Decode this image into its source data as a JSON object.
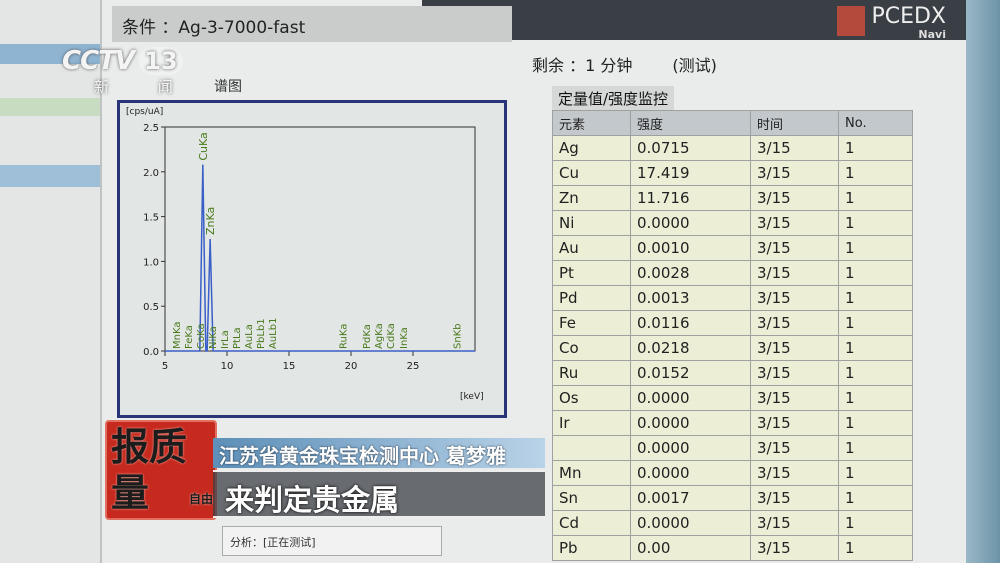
{
  "broadcast": {
    "channel_logo": "CCTV",
    "channel_number": "13",
    "channel_name": "新 闻",
    "program_seal": "报质量",
    "seal_small": "自由",
    "caption_speaker": "江苏省黄金珠宝检测中心 葛梦雅",
    "caption_subtitle": "来判定贵金属"
  },
  "app": {
    "brand": "PCEDX",
    "brand_sub": "Navi",
    "condition": "条件 ：Ag-3-7000-fast",
    "remaining": "剩余 ：1 分钟",
    "mode": "(测试)",
    "chart_label": "谱图",
    "accent": "#2a3578"
  },
  "spectrum": {
    "ylabel": "[cps/uA]",
    "xlabel": "[keV]",
    "xlim": [
      5,
      30
    ],
    "ylim": [
      0,
      2.5
    ],
    "xticks": [
      "5",
      "10",
      "15",
      "20",
      "25"
    ],
    "yticks": [
      "0.0",
      "0.5",
      "1.0",
      "1.5",
      "2.0",
      "2.5"
    ],
    "peaks": [
      {
        "label": "CuKa",
        "x": 8.05,
        "y": 2.08
      },
      {
        "label": "ZnKa",
        "x": 8.64,
        "y": 1.25
      }
    ],
    "line_labels": [
      {
        "label": "MnKa",
        "x": 5.9
      },
      {
        "label": "FeKa",
        "x": 6.4
      },
      {
        "label": "CoKa",
        "x": 6.9
      },
      {
        "label": "NiKa",
        "x": 7.5
      },
      {
        "label": "IrLa",
        "x": 9.2
      },
      {
        "label": "PtLa",
        "x": 9.4
      },
      {
        "label": "AuLa",
        "x": 9.7
      },
      {
        "label": "PbLb1",
        "x": 10.5
      },
      {
        "label": "AuLb1",
        "x": 11.4
      },
      {
        "label": "RuKa",
        "x": 19.3
      },
      {
        "label": "PdKa",
        "x": 21.2
      },
      {
        "label": "AgKa",
        "x": 22.1
      },
      {
        "label": "CdKa",
        "x": 23.1
      },
      {
        "label": "InKa",
        "x": 24.2
      },
      {
        "label": "SnKb",
        "x": 28.5
      }
    ],
    "line_color": "#3a5fc8",
    "label_color": "#4a7a1c"
  },
  "table": {
    "title": "定量值/强度监控",
    "headers": [
      "元素",
      "强度",
      "时间",
      "No."
    ],
    "rows": [
      [
        "Ag",
        "0.0715",
        "3/15",
        "1"
      ],
      [
        "Cu",
        "17.419",
        "3/15",
        "1"
      ],
      [
        "Zn",
        "11.716",
        "3/15",
        "1"
      ],
      [
        "Ni",
        "0.0000",
        "3/15",
        "1"
      ],
      [
        "Au",
        "0.0010",
        "3/15",
        "1"
      ],
      [
        "Pt",
        "0.0028",
        "3/15",
        "1"
      ],
      [
        "Pd",
        "0.0013",
        "3/15",
        "1"
      ],
      [
        "Fe",
        "0.0116",
        "3/15",
        "1"
      ],
      [
        "Co",
        "0.0218",
        "3/15",
        "1"
      ],
      [
        "Ru",
        "0.0152",
        "3/15",
        "1"
      ],
      [
        "Os",
        "0.0000",
        "3/15",
        "1"
      ],
      [
        "Ir",
        "0.0000",
        "3/15",
        "1"
      ],
      [
        "",
        "0.0000",
        "3/15",
        "1"
      ],
      [
        "Mn",
        "0.0000",
        "3/15",
        "1"
      ],
      [
        "Sn",
        "0.0017",
        "3/15",
        "1"
      ],
      [
        "Cd",
        "0.0000",
        "3/15",
        "1"
      ],
      [
        "Pb",
        "0.00",
        "3/15",
        "1"
      ]
    ]
  },
  "popup": {
    "text": "分析：[正在测试]"
  }
}
